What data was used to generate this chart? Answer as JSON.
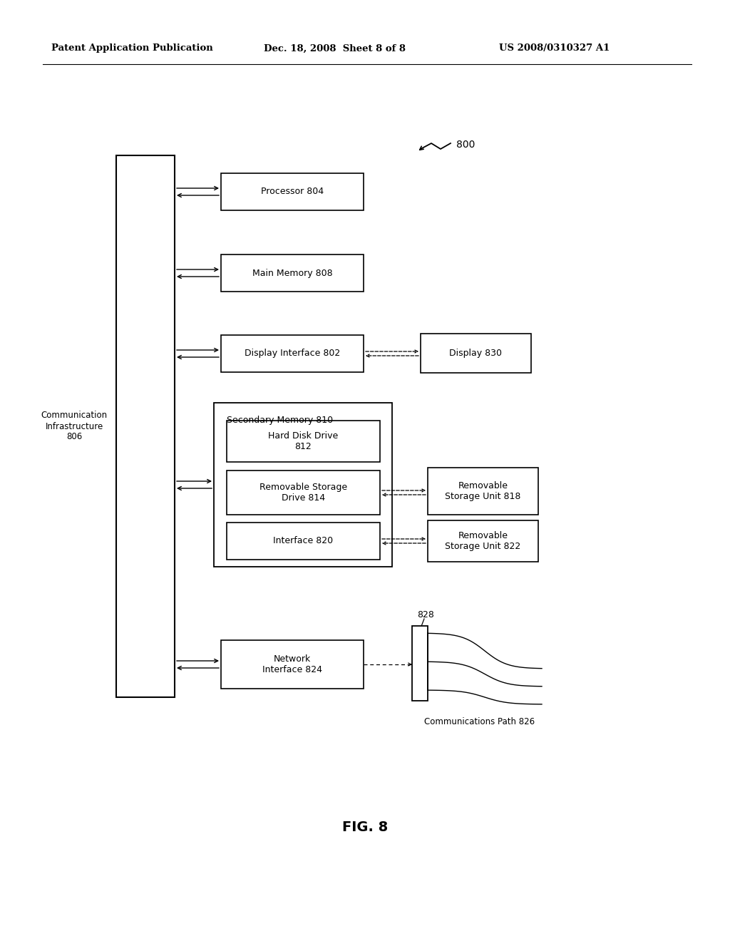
{
  "bg_color": "#ffffff",
  "header_left": "Patent Application Publication",
  "header_mid": "Dec. 18, 2008  Sheet 8 of 8",
  "header_right": "US 2008/0310327 A1",
  "fig_label": "FIG. 8",
  "ref_number": "800",
  "comm_infra_label": "Communication\nInfrastructure\n806",
  "labels": {
    "processor": "Processor 804",
    "main_memory": "Main Memory 808",
    "display_iface": "Display Interface 802",
    "display": "Display 830",
    "secondary_mem_title": "Secondary Memory 810",
    "hdd": "Hard Disk Drive\n812",
    "rem_storage_drive": "Removable Storage\nDrive 814",
    "interface_820": "Interface 820",
    "rem_unit_818": "Removable\nStorage Unit 818",
    "rem_unit_822": "Removable\nStorage Unit 822",
    "network_iface": "Network\nInterface 824",
    "comm_path": "Communications Path 826",
    "label_828": "828"
  }
}
